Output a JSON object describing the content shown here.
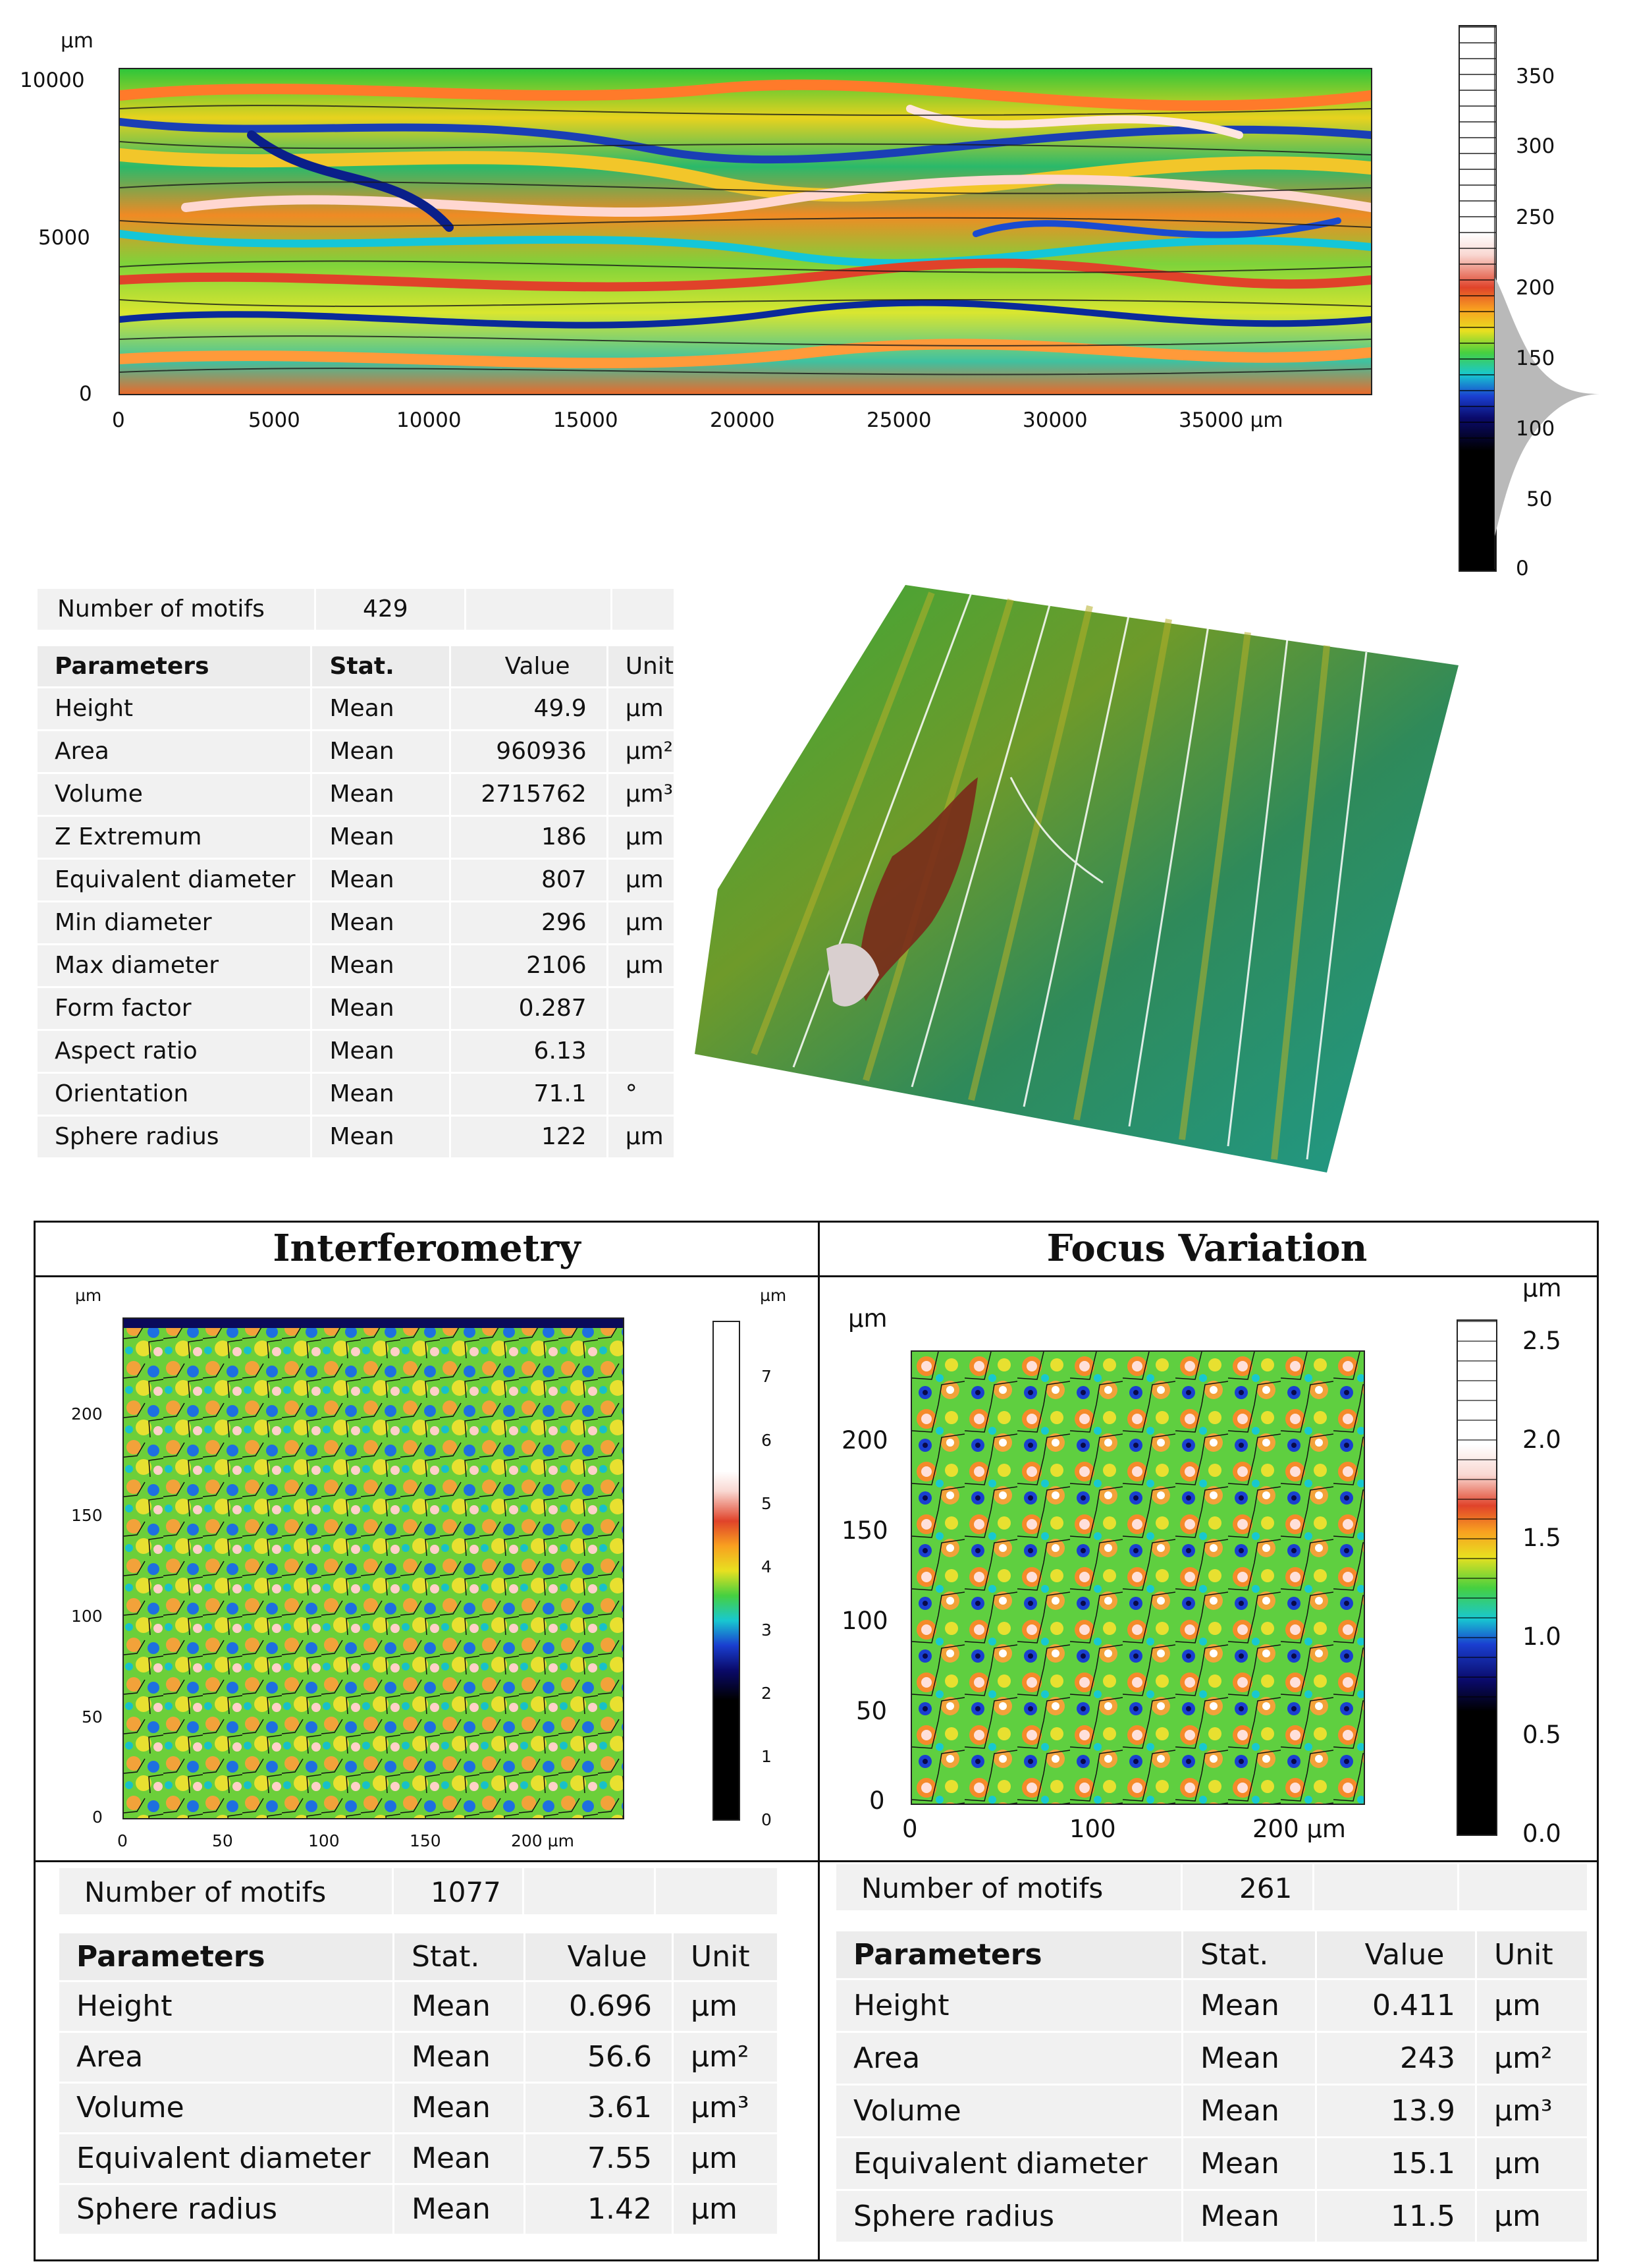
{
  "top_map": {
    "y_unit": "µm",
    "y_ticks": [
      "10000",
      "5000",
      "0"
    ],
    "x_ticks": [
      "0",
      "5000",
      "10000",
      "15000",
      "20000",
      "25000",
      "30000",
      "35000 µm"
    ],
    "colorbar_ticks": [
      "350",
      "300",
      "250",
      "200",
      "150",
      "100",
      "50",
      "0"
    ]
  },
  "top_table": {
    "motifs_label": "Number of motifs",
    "motifs_value": "429",
    "headers": [
      "Parameters",
      "Stat.",
      "Value",
      "Unit"
    ],
    "rows": [
      [
        "Height",
        "Mean",
        "49.9",
        "µm"
      ],
      [
        "Area",
        "Mean",
        "960936",
        "µm²"
      ],
      [
        "Volume",
        "Mean",
        "2715762",
        "µm³"
      ],
      [
        "Z Extremum",
        "Mean",
        "186",
        "µm"
      ],
      [
        "Equivalent diameter",
        "Mean",
        "807",
        "µm"
      ],
      [
        "Min diameter",
        "Mean",
        "296",
        "µm"
      ],
      [
        "Max diameter",
        "Mean",
        "2106",
        "µm"
      ],
      [
        "Form factor",
        "Mean",
        "0.287",
        ""
      ],
      [
        "Aspect ratio",
        "Mean",
        "6.13",
        ""
      ],
      [
        "Orientation",
        "Mean",
        "71.1",
        "°"
      ],
      [
        "Sphere radius",
        "Mean",
        "122",
        "µm"
      ]
    ]
  },
  "interferometry": {
    "title": "Interferometry",
    "y_unit": "µm",
    "cb_unit": "µm",
    "y_ticks": [
      "200",
      "150",
      "100",
      "50",
      "0"
    ],
    "x_ticks": [
      "0",
      "50",
      "100",
      "150",
      "200 µm"
    ],
    "colorbar_ticks": [
      "7",
      "6",
      "5",
      "4",
      "3",
      "2",
      "1",
      "0"
    ],
    "motifs_label": "Number of motifs",
    "motifs_value": "1077",
    "headers": [
      "Parameters",
      "Stat.",
      "Value",
      "Unit"
    ],
    "rows": [
      [
        "Height",
        "Mean",
        "0.696",
        "µm"
      ],
      [
        "Area",
        "Mean",
        "56.6",
        "µm²"
      ],
      [
        "Volume",
        "Mean",
        "3.61",
        "µm³"
      ],
      [
        "Equivalent diameter",
        "Mean",
        "7.55",
        "µm"
      ],
      [
        "Sphere radius",
        "Mean",
        "1.42",
        "µm"
      ]
    ]
  },
  "focus_variation": {
    "title": "Focus Variation",
    "y_unit": "µm",
    "cb_unit": "µm",
    "y_ticks": [
      "200",
      "150",
      "100",
      "50",
      "0"
    ],
    "x_ticks": [
      "0",
      "100",
      "200 µm"
    ],
    "colorbar_ticks": [
      "2.5",
      "2.0",
      "1.5",
      "1.0",
      "0.5",
      "0.0"
    ],
    "motifs_label": "Number of motifs",
    "motifs_value": "261",
    "headers": [
      "Parameters",
      "Stat.",
      "Value",
      "Unit"
    ],
    "rows": [
      [
        "Height",
        "Mean",
        "0.411",
        "µm"
      ],
      [
        "Area",
        "Mean",
        "243",
        "µm²"
      ],
      [
        "Volume",
        "Mean",
        "13.9",
        "µm³"
      ],
      [
        "Equivalent diameter",
        "Mean",
        "15.1",
        "µm"
      ],
      [
        "Sphere radius",
        "Mean",
        "11.5",
        "µm"
      ]
    ]
  }
}
